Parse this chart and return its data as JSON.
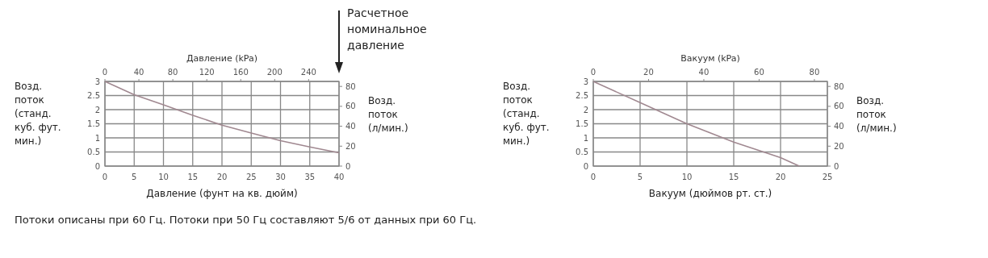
{
  "chart_data": [
    {
      "type": "line",
      "xlabel": "Давление (фунт на кв. дюйм)",
      "x2label": "Давление (kPa)",
      "ylabel": "Возд. поток (станд. куб. фут. мин.)",
      "y2label": "Возд. поток (л/мин.)",
      "xlim": [
        0,
        40
      ],
      "xticks": [
        0,
        5,
        10,
        15,
        20,
        25,
        30,
        35,
        40
      ],
      "x2lim": [
        0,
        275.8
      ],
      "x2ticks": [
        0,
        40,
        80,
        120,
        160,
        200,
        240
      ],
      "ylim": [
        0,
        3
      ],
      "yticks": [
        0,
        0.5,
        1,
        1.5,
        2,
        2.5,
        3
      ],
      "y2lim": [
        0,
        85
      ],
      "y2ticks": [
        0,
        20,
        40,
        60,
        80
      ],
      "grid": true,
      "marker": "none",
      "line_style": "solid",
      "series": [
        {
          "color": "#a08890",
          "x": [
            0,
            5,
            10,
            15,
            20,
            25,
            30,
            35,
            40
          ],
          "values": [
            3,
            2.53,
            2.17,
            1.8,
            1.45,
            1.17,
            0.9,
            0.68,
            0.47
          ]
        }
      ],
      "annotations": [
        "Расчетное номинальное давление",
        "Потоки описаны при 60 Гц. Потоки при 50 Гц составляют 5/6 от данных при 60 Гц."
      ]
    },
    {
      "type": "line",
      "xlabel": "Вакуум (дюймов рт. ст.)",
      "x2label": "Вакуум (kPa)",
      "ylabel": "Возд. поток (станд. куб. фут. мин.)",
      "y2label": "Возд. поток (л/мин.)",
      "xlim": [
        0,
        25
      ],
      "xticks": [
        0,
        5,
        10,
        15,
        20,
        25
      ],
      "x2lim": [
        0,
        84.7
      ],
      "x2ticks": [
        0,
        20,
        40,
        60,
        80
      ],
      "ylim": [
        0,
        3
      ],
      "yticks": [
        0,
        0.5,
        1,
        1.5,
        2,
        2.5,
        3
      ],
      "y2lim": [
        0,
        85
      ],
      "y2ticks": [
        0,
        20,
        40,
        60,
        80
      ],
      "grid": true,
      "marker": "none",
      "line_style": "solid",
      "series": [
        {
          "color": "#a08890",
          "x": [
            0,
            5,
            10,
            15,
            20,
            22
          ],
          "values": [
            3,
            2.25,
            1.5,
            0.85,
            0.3,
            0
          ]
        }
      ]
    }
  ]
}
